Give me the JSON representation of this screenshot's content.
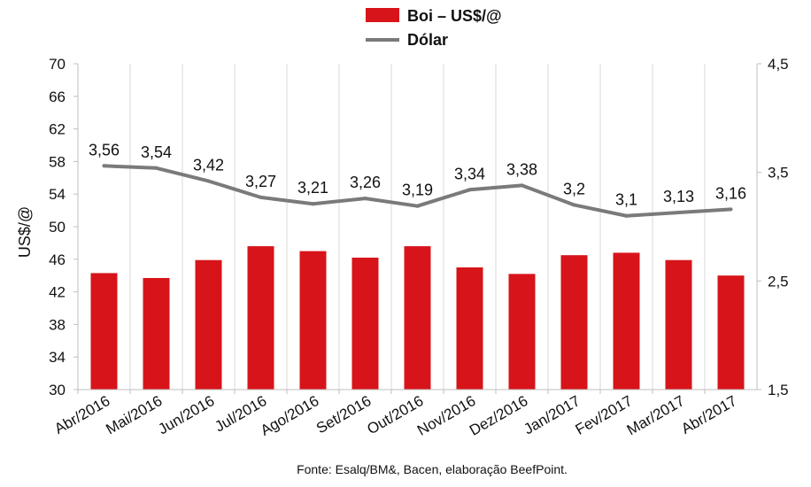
{
  "chart_data": {
    "type": "bar",
    "categories": [
      "Abr/2016",
      "Mai/2016",
      "Jun/2016",
      "Jul/2016",
      "Ago/2016",
      "Set/2016",
      "Out/2016",
      "Nov/2016",
      "Dez/2016",
      "Jan/2017",
      "Fev/2017",
      "Mar/2017",
      "Abr/2017"
    ],
    "series": [
      {
        "name": "Boi – US$/@",
        "type": "bar",
        "axis": "left",
        "color": "#d7141a",
        "values": [
          44.3,
          43.7,
          45.9,
          47.6,
          47.0,
          46.2,
          47.6,
          45.0,
          44.2,
          46.5,
          46.8,
          45.9,
          44.0
        ]
      },
      {
        "name": "Dólar",
        "type": "line",
        "axis": "right",
        "color": "#7a7a7a",
        "values": [
          3.56,
          3.54,
          3.42,
          3.27,
          3.21,
          3.26,
          3.19,
          3.34,
          3.38,
          3.2,
          3.1,
          3.13,
          3.16
        ],
        "labels": [
          "3,56",
          "3,54",
          "3,42",
          "3,27",
          "3,21",
          "3,26",
          "3,19",
          "3,34",
          "3,38",
          "3,2",
          "3,1",
          "3,13",
          "3,16"
        ]
      }
    ],
    "ylabel": "US$/@",
    "ylim": [
      30,
      70
    ],
    "yticks": [
      30,
      34,
      38,
      42,
      46,
      50,
      54,
      58,
      62,
      66,
      70
    ],
    "ytick_labels": [
      "30",
      "34",
      "38",
      "42",
      "46",
      "50",
      "54",
      "58",
      "62",
      "66",
      "70"
    ],
    "y2lim": [
      1.5,
      4.5
    ],
    "y2ticks": [
      1.5,
      2.5,
      3.5,
      4.5
    ],
    "y2tick_labels": [
      "1,5",
      "2,5",
      "3,5",
      "4,5"
    ],
    "grid": "vertical",
    "legend_position": "top-center",
    "source_note": "Fonte: Esalq/BM&, Bacen, elaboração BeefPoint."
  }
}
